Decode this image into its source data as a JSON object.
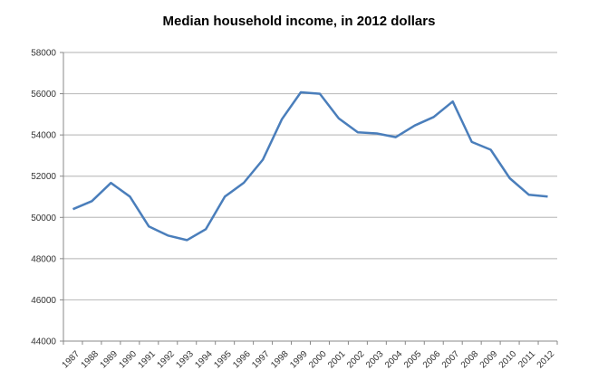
{
  "chart_data": {
    "type": "line",
    "title": "Median household income, in 2012 dollars",
    "xlabel": "",
    "ylabel": "",
    "ylim": [
      44000,
      58000
    ],
    "yticks": [
      44000,
      46000,
      48000,
      50000,
      52000,
      54000,
      56000,
      58000
    ],
    "grid": true,
    "legend": null,
    "categories": [
      "1987",
      "1988",
      "1989",
      "1990",
      "1991",
      "1992",
      "1993",
      "1994",
      "1995",
      "1996",
      "1997",
      "1998",
      "1999",
      "2000",
      "2001",
      "2002",
      "2003",
      "2004",
      "2005",
      "2006",
      "2007",
      "2008",
      "2009",
      "2010",
      "2011",
      "2012"
    ],
    "series": [
      {
        "name": "Median household income",
        "color": "#4a7ebb",
        "values": [
          50400,
          50790,
          51670,
          51010,
          49560,
          49120,
          48900,
          49430,
          51010,
          51680,
          52800,
          54760,
          56070,
          56000,
          54800,
          54130,
          54070,
          53890,
          54460,
          54870,
          55620,
          53660,
          53280,
          51900,
          51100,
          51010
        ]
      }
    ]
  }
}
